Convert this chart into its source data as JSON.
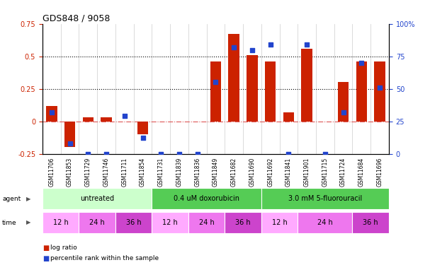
{
  "title": "GDS848 / 9058",
  "samples": [
    "GSM11706",
    "GSM11853",
    "GSM11729",
    "GSM11746",
    "GSM11711",
    "GSM11854",
    "GSM11731",
    "GSM11839",
    "GSM11836",
    "GSM11849",
    "GSM11682",
    "GSM11690",
    "GSM11692",
    "GSM11841",
    "GSM11901",
    "GSM11715",
    "GSM11724",
    "GSM11684",
    "GSM11696"
  ],
  "log_ratio": [
    0.12,
    -0.2,
    0.03,
    0.03,
    0.0,
    -0.1,
    0.0,
    0.0,
    0.0,
    0.46,
    0.67,
    0.51,
    0.46,
    0.07,
    0.56,
    0.0,
    0.3,
    0.46,
    0.46
  ],
  "percentile": [
    32,
    8,
    0,
    0,
    29,
    12,
    0,
    0,
    0,
    55,
    82,
    80,
    84,
    0,
    84,
    0,
    32,
    70,
    51
  ],
  "ylim_left": [
    -0.25,
    0.75
  ],
  "ylim_right": [
    0,
    100
  ],
  "yticks_left": [
    -0.25,
    0.0,
    0.25,
    0.5,
    0.75
  ],
  "yticks_right": [
    0,
    25,
    50,
    75,
    100
  ],
  "bar_color": "#cc2200",
  "dot_color": "#2244cc",
  "zero_line_color": "#dd5555",
  "agent_group_defs": [
    {
      "start": 0,
      "end": 6,
      "label": "untreated",
      "color": "#ccffcc"
    },
    {
      "start": 6,
      "end": 12,
      "label": "0.4 uM doxorubicin",
      "color": "#55cc55"
    },
    {
      "start": 12,
      "end": 19,
      "label": "3.0 mM 5-fluorouracil",
      "color": "#55cc55"
    }
  ],
  "time_defs": [
    {
      "start": 0,
      "end": 2,
      "label": "12 h",
      "color": "#ffaaff"
    },
    {
      "start": 2,
      "end": 4,
      "label": "24 h",
      "color": "#ee77ee"
    },
    {
      "start": 4,
      "end": 6,
      "label": "36 h",
      "color": "#cc44cc"
    },
    {
      "start": 6,
      "end": 8,
      "label": "12 h",
      "color": "#ffaaff"
    },
    {
      "start": 8,
      "end": 10,
      "label": "24 h",
      "color": "#ee77ee"
    },
    {
      "start": 10,
      "end": 12,
      "label": "36 h",
      "color": "#cc44cc"
    },
    {
      "start": 12,
      "end": 14,
      "label": "12 h",
      "color": "#ffaaff"
    },
    {
      "start": 14,
      "end": 17,
      "label": "24 h",
      "color": "#ee77ee"
    },
    {
      "start": 17,
      "end": 19,
      "label": "36 h",
      "color": "#cc44cc"
    }
  ]
}
